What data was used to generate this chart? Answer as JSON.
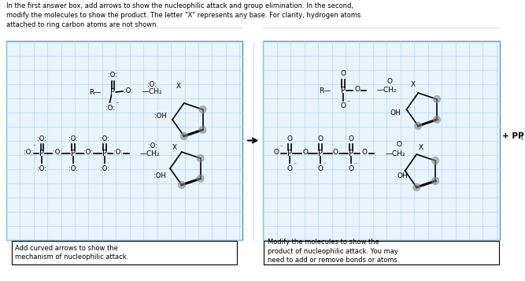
{
  "title_text": "In the first answer box, add arrows to show the nucleophilic attack and group elimination. In the second,\nmodify the molecules to show the product. The letter \"X\" represents any base. For clarity, hydrogen atoms\nattached to ring carbon atoms are not shown.",
  "caption_left": "Add curved arrows to show the\nmechanism of nucleophilic attack.",
  "caption_right": "Modify the molecules to show the\nproduct of nucleophilic attack. You may\nneed to add or remove bonds or atoms.",
  "grid_color": "#b8d4f0",
  "panel_bg": "#e8f4fb",
  "panel_border": "#5599bb",
  "bg_color": "#ffffff"
}
